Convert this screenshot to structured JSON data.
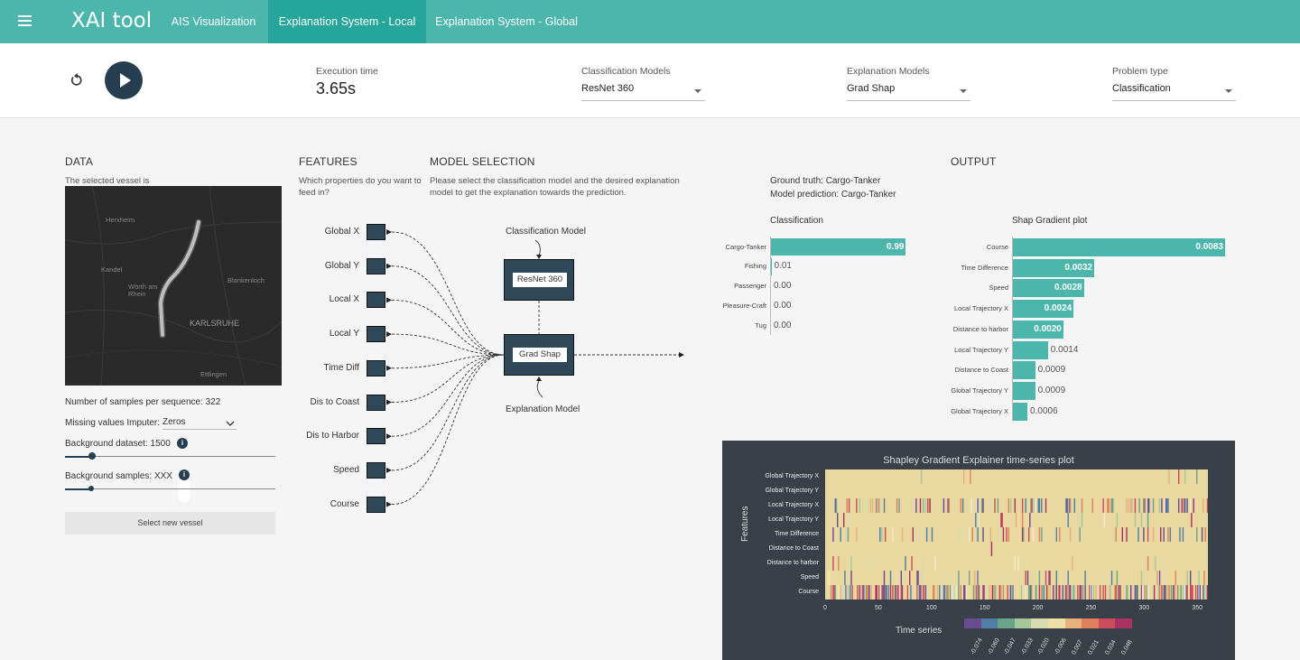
{
  "header": {
    "app_title": "XAI tool",
    "tabs": [
      {
        "label": "AIS Visualization"
      },
      {
        "label": "Explanation System - Local"
      },
      {
        "label": "Explanation System - Global"
      }
    ],
    "active_tab": 1
  },
  "controls": {
    "execution_time_label": "Execution time",
    "execution_time_value": "3.65s",
    "classification_models_label": "Classification Models",
    "classification_model_value": "ResNet 360",
    "explanation_models_label": "Explanation Models",
    "explanation_model_value": "Grad Shap",
    "problem_type_label": "Problem type",
    "problem_type_value": "Classification"
  },
  "data_section": {
    "title": "DATA",
    "subtitle": "The selected vessel is",
    "map_labels": [
      "Herxheim",
      "Kandel",
      "Wörth am Rhein",
      "Blankenloch",
      "KARLSRUHE",
      "Ettlingen"
    ],
    "samples_text": "Number of samples per sequence: 322",
    "imputer_label": "Missing values Imputer:",
    "imputer_value": "Zeros",
    "background_dataset_label": "Background dataset: 1500",
    "background_dataset_value": 0.13,
    "background_samples_label": "Background samples: XXX",
    "background_samples_value": 0.13,
    "info_glyph": "i",
    "new_vessel_button": "Select new vessel"
  },
  "features_section": {
    "title": "FEATURES",
    "subtitle": "Which properties do you want to feed in?",
    "features": [
      "Global X",
      "Global Y",
      "Local X",
      "Local Y",
      "Time Diff",
      "Dis to Coast",
      "Dis to Harbor",
      "Speed",
      "Course"
    ]
  },
  "model_section": {
    "title": "MODEL SELECTION",
    "subtitle": "Please select the classification model and the desired explanation model to get the explanation towards the prediction.",
    "classification_model_label": "Classification Model",
    "classification_model_box": "ResNet 360",
    "explanation_model_box": "Grad Shap",
    "explanation_model_label": "Explanation Model"
  },
  "output_section": {
    "title": "OUTPUT",
    "ground_truth": "Ground truth: Cargo-Tanker",
    "model_prediction": "Model prediction: Cargo-Tanker",
    "classification_title": "Classification",
    "shap_title": "Shap Gradient plot",
    "heatmap_title": "Shapley Gradient Explainer time-series plot",
    "heatmap_ylabel": "Features",
    "heatmap_xlabel": "Time series"
  },
  "chart_data": [
    {
      "type": "bar",
      "orientation": "horizontal",
      "title": "Classification",
      "categories": [
        "Cargo-Tanker",
        "Fishing",
        "Passenger",
        "Pleasure-Craft",
        "Tug"
      ],
      "values": [
        0.99,
        0.01,
        0.0,
        0.0,
        0.0
      ],
      "value_labels": [
        "0.99",
        "0.01",
        "0.00",
        "0.00",
        "0.00"
      ],
      "xlim": [
        0,
        1
      ],
      "color": "#4db6ac"
    },
    {
      "type": "bar",
      "orientation": "horizontal",
      "title": "Shap Gradient plot",
      "categories": [
        "Course",
        "Time Difference",
        "Speed",
        "Local Trajectory X",
        "Distance to harbor",
        "Local Trajectory Y",
        "Distance to Coast",
        "Global Trajectory Y",
        "Global Trajectory X"
      ],
      "values": [
        0.0083,
        0.0032,
        0.0028,
        0.0024,
        0.002,
        0.0014,
        0.0009,
        0.0009,
        0.0006
      ],
      "value_labels": [
        "0.0083",
        "0.0032",
        "0.0028",
        "0.0024",
        "0.0020",
        "0.0014",
        "0.0009",
        "0.0009",
        "0.0006"
      ],
      "xlim": [
        0,
        0.0083
      ],
      "color": "#4db6ac"
    },
    {
      "type": "heatmap",
      "title": "Shapley Gradient Explainer time-series plot",
      "xlabel": "Time series",
      "ylabel": "Features",
      "rows": [
        "Global Trajectory X",
        "Global Trajectory Y",
        "Local Trajectory X",
        "Local Trajectory Y",
        "Time Difference",
        "Distance to Coast",
        "Distance to harbor",
        "Speed",
        "Course"
      ],
      "x_ticks": [
        "0",
        "50",
        "100",
        "150",
        "200",
        "250",
        "300",
        "350"
      ],
      "xlim": [
        0,
        360
      ],
      "colorscale_ticks": [
        "-0.074",
        "-0.060",
        "-0.047",
        "-0.033",
        "-0.020",
        "-0.006",
        "0.007",
        "0.021",
        "0.034",
        "0.048"
      ],
      "colorscale_colors": [
        "#6a4c93",
        "#4f7ea8",
        "#6aa58a",
        "#a6c79a",
        "#d6dcae",
        "#ece0a8",
        "#e8b07a",
        "#e0805c",
        "#cc4c5c",
        "#a83262"
      ],
      "background_value_color": "#e9d8a0"
    }
  ]
}
